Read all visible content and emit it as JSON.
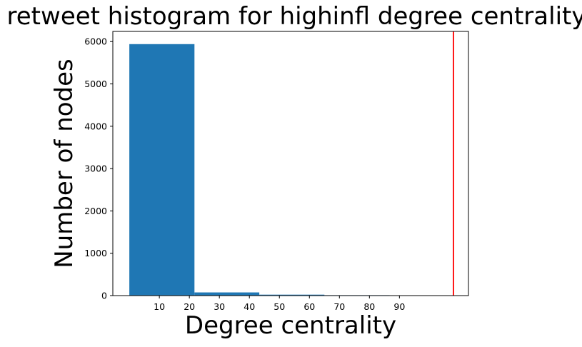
{
  "chart_data": {
    "type": "bar",
    "title": "retweet histogram for highinfl degree centrality",
    "xlabel": "Degree centrality",
    "ylabel": "Number of nodes",
    "bins": [
      {
        "x0": 0,
        "x1": 21.7,
        "value": 5940
      },
      {
        "x0": 21.7,
        "x1": 43.3,
        "value": 75
      },
      {
        "x0": 43.3,
        "x1": 65.0,
        "value": 22
      },
      {
        "x0": 65.0,
        "x1": 86.7,
        "value": 10
      }
    ],
    "bar_color": "#1f77b4",
    "xlim": [
      -5.5,
      113
    ],
    "ylim": [
      0,
      6240
    ],
    "xticks": [
      10,
      20,
      30,
      40,
      50,
      60,
      70,
      80,
      90
    ],
    "xtick_labels": [
      "10",
      "20",
      "30",
      "40",
      "50",
      "60",
      "70",
      "80",
      "90"
    ],
    "yticks": [
      0,
      1000,
      2000,
      3000,
      4000,
      5000,
      6000
    ],
    "ytick_labels": [
      "0",
      "1000",
      "2000",
      "3000",
      "4000",
      "5000",
      "6000"
    ],
    "vline": {
      "x": 108,
      "color": "#ff0000"
    }
  }
}
